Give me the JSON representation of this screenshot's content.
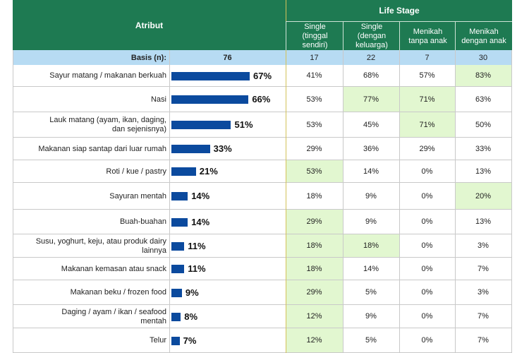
{
  "header": {
    "atribut": "Atribut",
    "life_stage": "Life Stage",
    "columns": [
      "Single\n(tinggal\nsendiri)",
      "Single\n(dengan\nkeluarga)",
      "Menikah\ntanpa anak",
      "Menikah\ndengan anak"
    ]
  },
  "basis": {
    "label": "Basis (n):",
    "total": "76",
    "values": [
      "17",
      "22",
      "7",
      "30"
    ]
  },
  "colors": {
    "header": "#1e7a52",
    "basis": "#b7dbf3",
    "bar": "#0b4a9e",
    "highlight": "#e2f7d0"
  },
  "chart_data": {
    "type": "bar",
    "orientation": "horizontal",
    "xlim": [
      0,
      100
    ],
    "categories": [
      "Sayur matang / makanan berkuah",
      "Nasi",
      "Lauk matang (ayam, ikan, daging,\ndan sejenisnya)",
      "Makanan siap santap dari luar rumah",
      "Roti / kue / pastry",
      "Sayuran mentah",
      "Buah-buahan",
      "Susu, yoghurt, keju, atau produk dairy\nlainnya",
      "Makanan kemasan atau snack",
      "Makanan beku / frozen food",
      "Daging / ayam / ikan / seafood\nmentah",
      "Telur"
    ],
    "values": [
      67,
      66,
      51,
      33,
      21,
      14,
      14,
      11,
      11,
      9,
      8,
      7
    ],
    "value_labels": [
      "67%",
      "66%",
      "51%",
      "33%",
      "21%",
      "14%",
      "14%",
      "11%",
      "11%",
      "9%",
      "8%",
      "7%"
    ]
  },
  "table": {
    "cells": [
      [
        "41%",
        "68%",
        "57%",
        "83%"
      ],
      [
        "53%",
        "77%",
        "71%",
        "63%"
      ],
      [
        "53%",
        "45%",
        "71%",
        "50%"
      ],
      [
        "29%",
        "36%",
        "29%",
        "33%"
      ],
      [
        "53%",
        "14%",
        "0%",
        "13%"
      ],
      [
        "18%",
        "9%",
        "0%",
        "20%"
      ],
      [
        "29%",
        "9%",
        "0%",
        "13%"
      ],
      [
        "18%",
        "18%",
        "0%",
        "3%"
      ],
      [
        "18%",
        "14%",
        "0%",
        "7%"
      ],
      [
        "29%",
        "5%",
        "0%",
        "3%"
      ],
      [
        "12%",
        "9%",
        "0%",
        "7%"
      ],
      [
        "12%",
        "5%",
        "0%",
        "7%"
      ]
    ],
    "highlighted": [
      [
        false,
        false,
        false,
        true
      ],
      [
        false,
        true,
        true,
        false
      ],
      [
        false,
        false,
        true,
        false
      ],
      [
        false,
        false,
        false,
        false
      ],
      [
        true,
        false,
        false,
        false
      ],
      [
        false,
        false,
        false,
        true
      ],
      [
        true,
        false,
        false,
        false
      ],
      [
        true,
        true,
        false,
        false
      ],
      [
        true,
        false,
        false,
        false
      ],
      [
        true,
        false,
        false,
        false
      ],
      [
        true,
        false,
        false,
        false
      ],
      [
        true,
        false,
        false,
        false
      ]
    ]
  }
}
